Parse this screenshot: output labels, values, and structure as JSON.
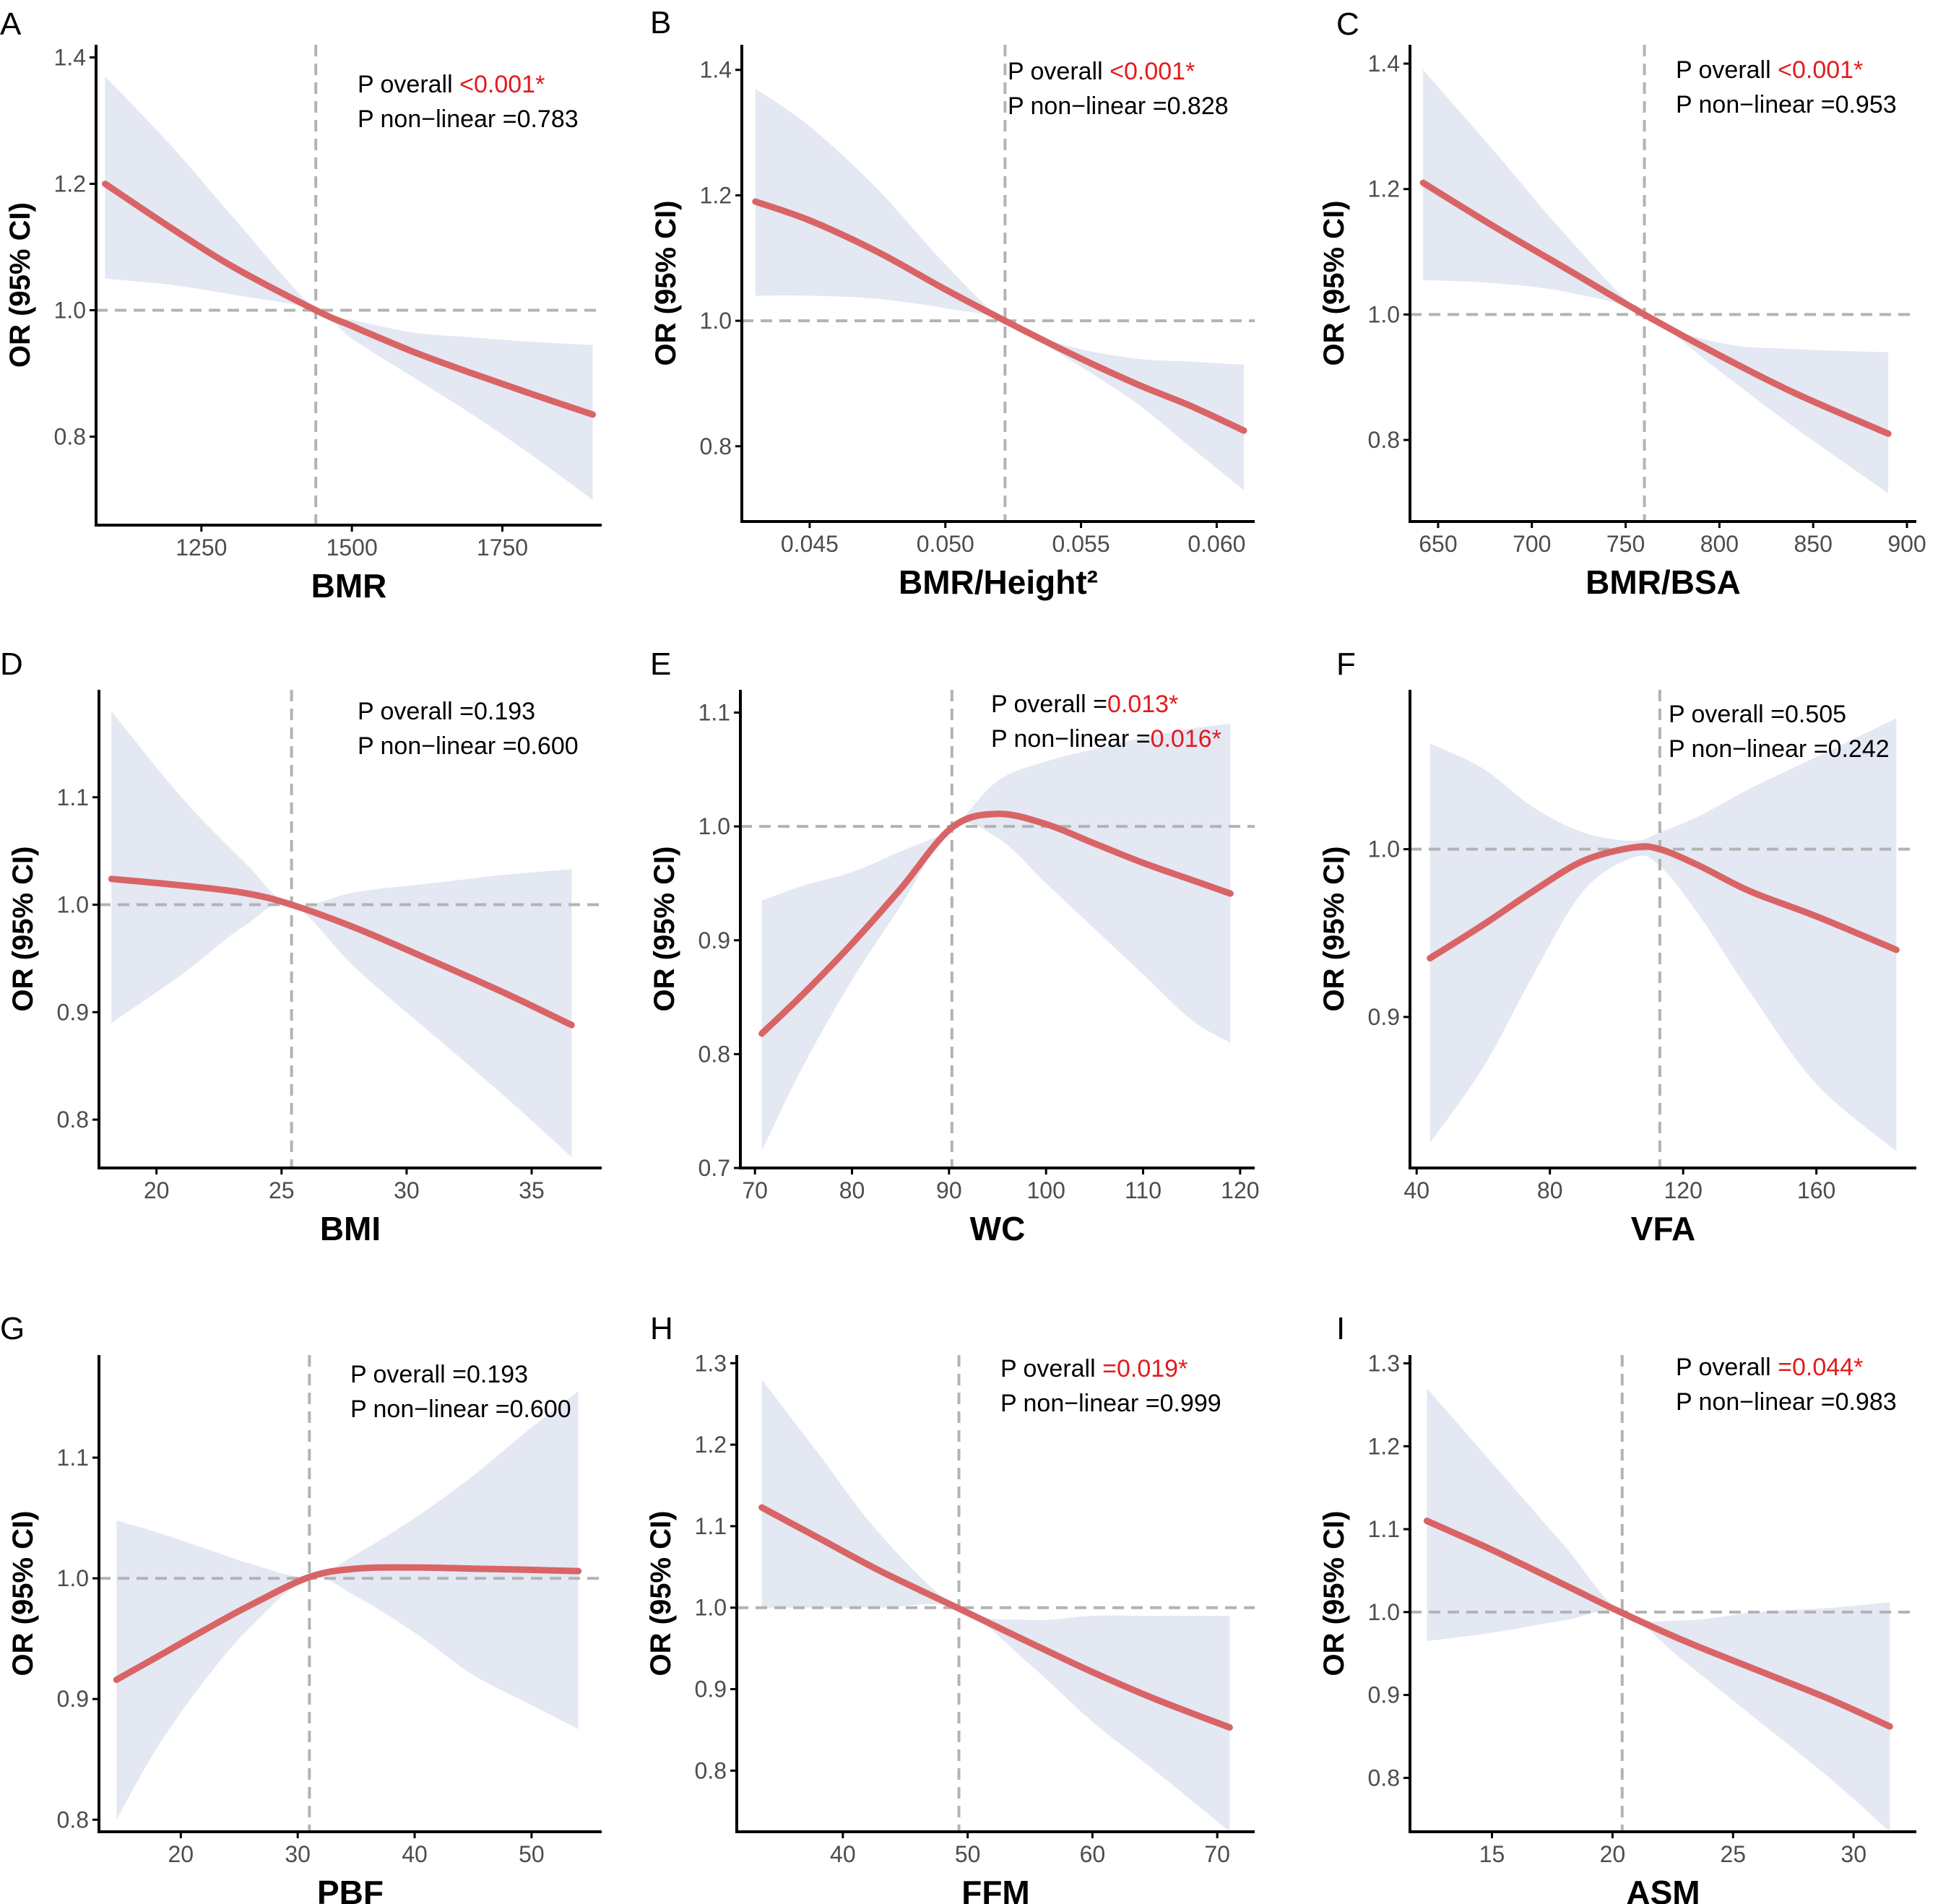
{
  "figure": {
    "colors": {
      "curve": "#d96466",
      "band": "#e4e8f3",
      "refline": "#b3b3b3",
      "significant": "#e31a1c",
      "axis": "#000000"
    }
  },
  "chart_data": [
    {
      "panel": "A",
      "type": "line",
      "xlabel": "BMR",
      "ylabel": "OR (95% CI)",
      "xlim": [
        1075,
        1915
      ],
      "ylim": [
        0.66,
        1.42
      ],
      "xticks": [
        1250,
        1500,
        1750
      ],
      "xtick_labels": [
        "1250",
        "1500",
        "1750"
      ],
      "yticks": [
        0.8,
        1.0,
        1.2,
        1.4
      ],
      "ytick_labels": [
        "0.8",
        "1.0",
        "1.2",
        "1.4"
      ],
      "reference_x": 1440,
      "reference_y": 1.0,
      "x": [
        1090,
        1200,
        1300,
        1440,
        1500,
        1600,
        1700,
        1800,
        1900
      ],
      "y": [
        1.2,
        1.13,
        1.07,
        1.0,
        0.975,
        0.935,
        0.9,
        0.867,
        0.835
      ],
      "lower": [
        1.05,
        1.04,
        1.025,
        1.0,
        0.955,
        0.895,
        0.835,
        0.77,
        0.7
      ],
      "upper": [
        1.37,
        1.26,
        1.15,
        1.0,
        0.985,
        0.965,
        0.957,
        0.95,
        0.945
      ],
      "annotations": [
        {
          "label": "P overall ",
          "value": "<0.001*",
          "significant": true
        },
        {
          "label": "P non−linear =",
          "value": "0.783",
          "significant": false
        }
      ]
    },
    {
      "panel": "B",
      "type": "line",
      "xlabel": "BMR/Height²",
      "ylabel": "OR (95% CI)",
      "xlim": [
        0.0425,
        0.0614
      ],
      "ylim": [
        0.68,
        1.44
      ],
      "xticks": [
        0.045,
        0.05,
        0.055,
        0.06
      ],
      "xtick_labels": [
        "0.045",
        "0.050",
        "0.055",
        "0.060"
      ],
      "yticks": [
        0.8,
        1.0,
        1.2,
        1.4
      ],
      "ytick_labels": [
        "0.8",
        "1.0",
        "1.2",
        "1.4"
      ],
      "reference_x": 0.0522,
      "reference_y": 1.0,
      "x": [
        0.043,
        0.045,
        0.0475,
        0.05,
        0.0522,
        0.0545,
        0.057,
        0.059,
        0.061
      ],
      "y": [
        1.19,
        1.16,
        1.11,
        1.05,
        1.0,
        0.95,
        0.9,
        0.865,
        0.825
      ],
      "lower": [
        1.04,
        1.04,
        1.035,
        1.02,
        1.0,
        0.94,
        0.87,
        0.8,
        0.73
      ],
      "upper": [
        1.37,
        1.31,
        1.21,
        1.09,
        1.0,
        0.96,
        0.94,
        0.935,
        0.93
      ],
      "annotations": [
        {
          "label": "P overall ",
          "value": "<0.001*",
          "significant": true
        },
        {
          "label": "P non−linear =",
          "value": "0.828",
          "significant": false
        }
      ]
    },
    {
      "panel": "C",
      "type": "line",
      "xlabel": "BMR/BSA",
      "ylabel": "OR (95% CI)",
      "xlim": [
        635,
        905
      ],
      "ylim": [
        0.67,
        1.43
      ],
      "xticks": [
        650,
        700,
        750,
        800,
        850,
        900
      ],
      "xtick_labels": [
        "650",
        "700",
        "750",
        "800",
        "850",
        "900"
      ],
      "yticks": [
        0.8,
        1.0,
        1.2,
        1.4
      ],
      "ytick_labels": [
        "0.8",
        "1.0",
        "1.2",
        "1.4"
      ],
      "reference_x": 760,
      "reference_y": 1.0,
      "x": [
        642,
        680,
        720,
        760,
        800,
        840,
        890
      ],
      "y": [
        1.21,
        1.14,
        1.07,
        1.0,
        0.935,
        0.875,
        0.81
      ],
      "lower": [
        1.055,
        1.05,
        1.035,
        1.0,
        0.91,
        0.82,
        0.715
      ],
      "upper": [
        1.39,
        1.26,
        1.12,
        1.0,
        0.955,
        0.945,
        0.94
      ],
      "annotations": [
        {
          "label": "P overall ",
          "value": "<0.001*",
          "significant": true
        },
        {
          "label": "P non−linear =",
          "value": "0.953",
          "significant": false
        }
      ]
    },
    {
      "panel": "D",
      "type": "line",
      "xlabel": "BMI",
      "ylabel": "OR (95% CI)",
      "xlim": [
        17.7,
        37.8
      ],
      "ylim": [
        0.755,
        1.2
      ],
      "xticks": [
        20,
        25,
        30,
        35
      ],
      "xtick_labels": [
        "20",
        "25",
        "30",
        "35"
      ],
      "yticks": [
        0.8,
        0.9,
        1.0,
        1.1
      ],
      "ytick_labels": [
        "0.8",
        "0.9",
        "1.0",
        "1.1"
      ],
      "reference_x": 25.4,
      "reference_y": 1.0,
      "x": [
        18.2,
        21,
        23.5,
        25.4,
        28,
        31,
        34,
        36.6
      ],
      "y": [
        1.024,
        1.018,
        1.011,
        1.0,
        0.978,
        0.948,
        0.917,
        0.888
      ],
      "lower": [
        0.89,
        0.935,
        0.98,
        1.0,
        0.94,
        0.88,
        0.82,
        0.765
      ],
      "upper": [
        1.18,
        1.1,
        1.04,
        1.0,
        1.012,
        1.02,
        1.028,
        1.033
      ],
      "annotations": [
        {
          "label": "P overall =",
          "value": "0.193",
          "significant": false
        },
        {
          "label": "P non−linear =",
          "value": "0.600",
          "significant": false
        }
      ]
    },
    {
      "panel": "E",
      "type": "line",
      "xlabel": "WC",
      "ylabel": "OR (95% CI)",
      "xlim": [
        68.5,
        121.5
      ],
      "ylim": [
        0.7,
        1.12
      ],
      "xticks": [
        70,
        80,
        90,
        100,
        110,
        120
      ],
      "xtick_labels": [
        "70",
        "80",
        "90",
        "100",
        "110",
        "120"
      ],
      "yticks": [
        0.7,
        0.8,
        0.9,
        1.0,
        1.1
      ],
      "ytick_labels": [
        "0.7",
        "0.8",
        "0.9",
        "1.0",
        "1.1"
      ],
      "reference_x": 90.3,
      "reference_y": 1.0,
      "x": [
        70.7,
        75,
        80,
        85,
        90.3,
        95,
        100,
        105,
        110,
        115,
        119
      ],
      "y": [
        0.818,
        0.853,
        0.897,
        0.945,
        0.999,
        1.011,
        1.002,
        0.985,
        0.968,
        0.953,
        0.941
      ],
      "lower": [
        0.715,
        0.79,
        0.865,
        0.93,
        0.999,
        0.99,
        0.95,
        0.91,
        0.87,
        0.83,
        0.81
      ],
      "upper": [
        0.935,
        0.948,
        0.96,
        0.978,
        0.999,
        1.04,
        1.057,
        1.068,
        1.078,
        1.086,
        1.09
      ],
      "annotations": [
        {
          "label": "P overall =",
          "value": "0.013*",
          "significant": true
        },
        {
          "label": "P non−linear =",
          "value": "0.016*",
          "significant": true
        }
      ]
    },
    {
      "panel": "F",
      "type": "line",
      "xlabel": "VFA",
      "ylabel": "OR (95% CI)",
      "xlim": [
        38,
        190
      ],
      "ylim": [
        0.81,
        1.095
      ],
      "xticks": [
        40,
        80,
        120,
        160
      ],
      "xtick_labels": [
        "40",
        "80",
        "120",
        "160"
      ],
      "yticks": [
        0.9,
        1.0
      ],
      "ytick_labels": [
        "0.9",
        "1.0"
      ],
      "reference_x": 113,
      "reference_y": 1.0,
      "x": [
        44,
        60,
        75,
        90,
        105,
        113,
        125,
        140,
        160,
        184
      ],
      "y": [
        0.935,
        0.955,
        0.975,
        0.993,
        1.001,
        1.0,
        0.99,
        0.975,
        0.96,
        0.94
      ],
      "lower": [
        0.825,
        0.87,
        0.925,
        0.975,
        0.995,
        0.99,
        0.96,
        0.915,
        0.86,
        0.82
      ],
      "upper": [
        1.063,
        1.048,
        1.025,
        1.01,
        1.005,
        1.01,
        1.02,
        1.036,
        1.055,
        1.078
      ],
      "annotations": [
        {
          "label": "P overall =",
          "value": "0.505",
          "significant": false
        },
        {
          "label": "P non−linear =",
          "value": "0.242",
          "significant": false
        }
      ]
    },
    {
      "panel": "G",
      "type": "line",
      "xlabel": "PBF",
      "ylabel": "OR (95% CI)",
      "xlim": [
        13,
        56
      ],
      "ylim": [
        0.79,
        1.185
      ],
      "xticks": [
        20,
        30,
        40,
        50
      ],
      "xtick_labels": [
        "20",
        "30",
        "40",
        "50"
      ],
      "yticks": [
        0.8,
        0.9,
        1.0,
        1.1
      ],
      "ytick_labels": [
        "0.8",
        "0.9",
        "1.0",
        "1.1"
      ],
      "reference_x": 31,
      "reference_y": 1.0,
      "x": [
        14.5,
        18,
        22,
        26,
        31,
        35,
        40,
        45,
        50,
        54
      ],
      "y": [
        0.916,
        0.935,
        0.957,
        0.978,
        1.001,
        1.008,
        1.009,
        1.008,
        1.007,
        1.006
      ],
      "lower": [
        0.8,
        0.86,
        0.915,
        0.96,
        1.0,
        0.985,
        0.955,
        0.92,
        0.895,
        0.875
      ],
      "upper": [
        1.048,
        1.038,
        1.025,
        1.012,
        1.001,
        1.02,
        1.05,
        1.085,
        1.125,
        1.155
      ],
      "annotations": [
        {
          "label": "P overall =",
          "value": "0.193",
          "significant": false
        },
        {
          "label": "P non−linear =",
          "value": "0.600",
          "significant": false
        }
      ]
    },
    {
      "panel": "H",
      "type": "line",
      "xlabel": "FFM",
      "ylabel": "OR (95% CI)",
      "xlim": [
        31.5,
        73
      ],
      "ylim": [
        0.725,
        1.31
      ],
      "xticks": [
        40,
        50,
        60,
        70
      ],
      "xtick_labels": [
        "40",
        "50",
        "60",
        "70"
      ],
      "yticks": [
        0.8,
        0.9,
        1.0,
        1.1,
        1.2,
        1.3
      ],
      "ytick_labels": [
        "0.8",
        "0.9",
        "1.0",
        "1.1",
        "1.2",
        "1.3"
      ],
      "reference_x": 49.3,
      "reference_y": 1.0,
      "x": [
        33.5,
        38,
        43,
        49.3,
        55,
        60,
        65,
        71
      ],
      "y": [
        1.123,
        1.086,
        1.045,
        0.999,
        0.957,
        0.921,
        0.888,
        0.853
      ],
      "lower": [
        1.0,
        1.0,
        1.0,
        0.999,
        0.93,
        0.86,
        0.8,
        0.725
      ],
      "upper": [
        1.28,
        1.19,
        1.09,
        0.999,
        0.985,
        0.99,
        0.99,
        0.99
      ],
      "annotations": [
        {
          "label": "P overall ",
          "value": "=0.019*",
          "significant": true
        },
        {
          "label": "P non−linear =",
          "value": "0.999",
          "significant": false
        }
      ]
    },
    {
      "panel": "I",
      "type": "line",
      "xlabel": "ASM",
      "ylabel": "OR (95% CI)",
      "xlim": [
        11.6,
        32.6
      ],
      "ylim": [
        0.735,
        1.31
      ],
      "xticks": [
        15,
        20,
        25,
        30
      ],
      "xtick_labels": [
        "15",
        "20",
        "25",
        "30"
      ],
      "yticks": [
        0.8,
        0.9,
        1.0,
        1.1,
        1.2,
        1.3
      ],
      "ytick_labels": [
        "0.8",
        "0.9",
        "1.0",
        "1.1",
        "1.2",
        "1.3"
      ],
      "reference_x": 20.4,
      "reference_y": 1.0,
      "x": [
        12.3,
        15,
        18,
        20.4,
        23,
        26,
        29,
        31.5
      ],
      "y": [
        1.11,
        1.075,
        1.033,
        0.999,
        0.965,
        0.93,
        0.895,
        0.862
      ],
      "lower": [
        0.965,
        0.975,
        0.99,
        0.999,
        0.94,
        0.87,
        0.8,
        0.735
      ],
      "upper": [
        1.27,
        1.18,
        1.08,
        0.999,
        0.99,
        1.0,
        1.005,
        1.012
      ],
      "annotations": [
        {
          "label": "P overall ",
          "value": "=0.044*",
          "significant": true
        },
        {
          "label": "P non−linear =",
          "value": "0.983",
          "significant": false
        }
      ]
    }
  ]
}
